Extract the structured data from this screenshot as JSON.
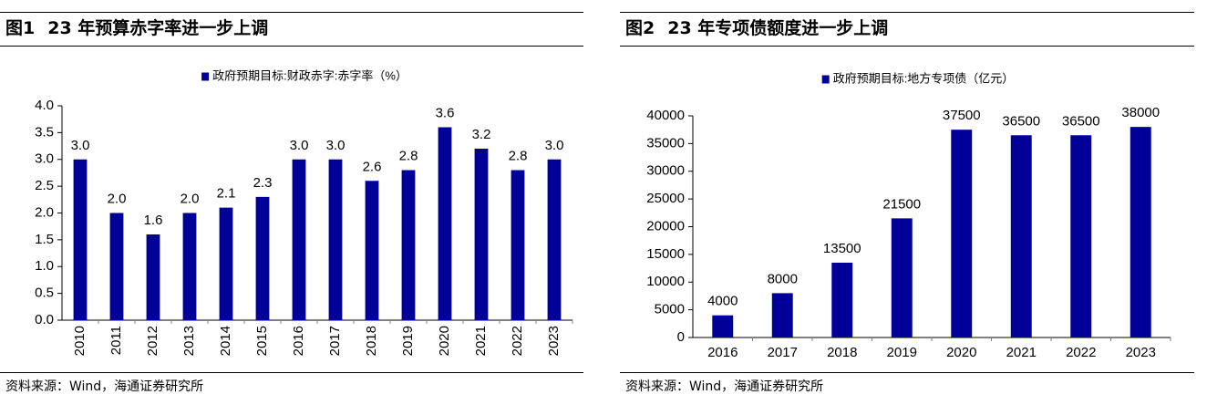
{
  "colors": {
    "bar": "#000099",
    "axis": "#000000",
    "tick_minor": "#808080"
  },
  "left": {
    "fig_label": "图1",
    "fig_title": "23 年预算赤字率进一步上调",
    "source": "资料来源：Wind，海通证券研究所",
    "chart_data": {
      "type": "bar",
      "legend": "政府预期目标:财政赤字:赤字率（%）",
      "legend_position": "top-center",
      "categories": [
        "2010",
        "2011",
        "2012",
        "2013",
        "2014",
        "2015",
        "2016",
        "2017",
        "2018",
        "2019",
        "2020",
        "2021",
        "2022",
        "2023"
      ],
      "values": [
        3.0,
        2.0,
        1.6,
        2.0,
        2.1,
        2.3,
        3.0,
        3.0,
        2.6,
        2.8,
        3.6,
        3.2,
        2.8,
        3.0
      ],
      "data_labels": [
        "3.0",
        "2.0",
        "1.6",
        "2.0",
        "2.1",
        "2.3",
        "3.0",
        "3.0",
        "2.6",
        "2.8",
        "3.6",
        "3.2",
        "2.8",
        "3.0"
      ],
      "ylim": [
        0,
        4.0
      ],
      "yticks": [
        "0.0",
        "0.5",
        "1.0",
        "1.5",
        "2.0",
        "2.5",
        "3.0",
        "3.5",
        "4.0"
      ],
      "x_tick_rotation": "vertical",
      "grid": false
    }
  },
  "right": {
    "fig_label": "图2",
    "fig_title": "23 年专项债额度进一步上调",
    "source": "资料来源：Wind，海通证券研究所",
    "chart_data": {
      "type": "bar",
      "legend": "政府预期目标:地方专项债（亿元）",
      "legend_position": "top-center",
      "categories": [
        "2016",
        "2017",
        "2018",
        "2019",
        "2020",
        "2021",
        "2022",
        "2023"
      ],
      "values": [
        4000,
        8000,
        13500,
        21500,
        37500,
        36500,
        36500,
        38000
      ],
      "data_labels": [
        "4000",
        "8000",
        "13500",
        "21500",
        "37500",
        "36500",
        "36500",
        "38000"
      ],
      "ylim": [
        0,
        40000
      ],
      "yticks": [
        "0",
        "5000",
        "10000",
        "15000",
        "20000",
        "25000",
        "30000",
        "35000",
        "40000"
      ],
      "x_tick_rotation": "horizontal",
      "grid": false
    }
  }
}
